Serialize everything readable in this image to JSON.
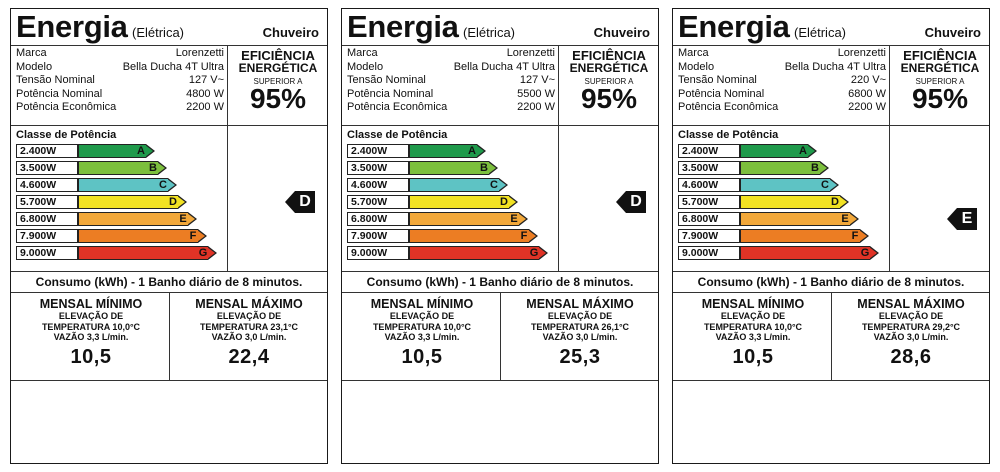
{
  "labels": [
    {
      "title": "Energia",
      "subtitle": "(Elétrica)",
      "product": "Chuveiro",
      "specs": [
        {
          "k": "Marca",
          "v": "Lorenzetti"
        },
        {
          "k": "Modelo",
          "v": "Bella Ducha 4T Ultra"
        },
        {
          "k": "Tensão Nominal",
          "v": "127 V~"
        },
        {
          "k": "Potência Nominal",
          "v": "4800 W"
        },
        {
          "k": "Potência Econômica",
          "v": "2200 W"
        }
      ],
      "efficiency": {
        "line1": "EFICIÊNCIA",
        "line2": "ENERGÉTICA",
        "line3": "SUPERIOR A",
        "value": "95%"
      },
      "class_title": "Classe de Potência",
      "classes": [
        {
          "kw": "2.400W",
          "letter": "A"
        },
        {
          "kw": "3.500W",
          "letter": "B"
        },
        {
          "kw": "4.600W",
          "letter": "C"
        },
        {
          "kw": "5.700W",
          "letter": "D"
        },
        {
          "kw": "6.800W",
          "letter": "E"
        },
        {
          "kw": "7.900W",
          "letter": "F"
        },
        {
          "kw": "9.000W",
          "letter": "G"
        }
      ],
      "rating": "D",
      "rating_index": 3,
      "consumo": "Consumo (kWh) - 1 Banho diário de 8 minutos.",
      "min": {
        "title": "MENSAL MÍNIMO",
        "l1": "ELEVAÇÃO DE",
        "l2": "TEMPERATURA 10,0°C",
        "l3": "VAZÃO 3,3 L/min.",
        "value": "10,5"
      },
      "max": {
        "title": "MENSAL MÁXIMO",
        "l1": "ELEVAÇÃO DE",
        "l2": "TEMPERATURA 23,1°C",
        "l3": "VAZÃO 3,0 L/min.",
        "value": "22,4"
      }
    },
    {
      "title": "Energia",
      "subtitle": "(Elétrica)",
      "product": "Chuveiro",
      "specs": [
        {
          "k": "Marca",
          "v": "Lorenzetti"
        },
        {
          "k": "Modelo",
          "v": "Bella Ducha 4T Ultra"
        },
        {
          "k": "Tensão Nominal",
          "v": "127 V~"
        },
        {
          "k": "Potência Nominal",
          "v": "5500 W"
        },
        {
          "k": "Potência Econômica",
          "v": "2200 W"
        }
      ],
      "efficiency": {
        "line1": "EFICIÊNCIA",
        "line2": "ENERGÉTICA",
        "line3": "SUPERIOR A",
        "value": "95%"
      },
      "class_title": "Classe de Potência",
      "classes": [
        {
          "kw": "2.400W",
          "letter": "A"
        },
        {
          "kw": "3.500W",
          "letter": "B"
        },
        {
          "kw": "4.600W",
          "letter": "C"
        },
        {
          "kw": "5.700W",
          "letter": "D"
        },
        {
          "kw": "6.800W",
          "letter": "E"
        },
        {
          "kw": "7.900W",
          "letter": "F"
        },
        {
          "kw": "9.000W",
          "letter": "G"
        }
      ],
      "rating": "D",
      "rating_index": 3,
      "consumo": "Consumo (kWh) - 1 Banho diário de 8 minutos.",
      "min": {
        "title": "MENSAL MÍNIMO",
        "l1": "ELEVAÇÃO DE",
        "l2": "TEMPERATURA 10,0°C",
        "l3": "VAZÃO 3,3 L/min.",
        "value": "10,5"
      },
      "max": {
        "title": "MENSAL MÁXIMO",
        "l1": "ELEVAÇÃO DE",
        "l2": "TEMPERATURA 26,1°C",
        "l3": "VAZÃO 3,0 L/min.",
        "value": "25,3"
      }
    },
    {
      "title": "Energia",
      "subtitle": "(Elétrica)",
      "product": "Chuveiro",
      "specs": [
        {
          "k": "Marca",
          "v": "Lorenzetti"
        },
        {
          "k": "Modelo",
          "v": "Bella Ducha 4T Ultra"
        },
        {
          "k": "Tensão Nominal",
          "v": "220 V~"
        },
        {
          "k": "Potência Nominal",
          "v": "6800 W"
        },
        {
          "k": "Potência Econômica",
          "v": "2200 W"
        }
      ],
      "efficiency": {
        "line1": "EFICIÊNCIA",
        "line2": "ENERGÉTICA",
        "line3": "SUPERIOR A",
        "value": "95%"
      },
      "class_title": "Classe de Potência",
      "classes": [
        {
          "kw": "2.400W",
          "letter": "A"
        },
        {
          "kw": "3.500W",
          "letter": "B"
        },
        {
          "kw": "4.600W",
          "letter": "C"
        },
        {
          "kw": "5.700W",
          "letter": "D"
        },
        {
          "kw": "6.800W",
          "letter": "E"
        },
        {
          "kw": "7.900W",
          "letter": "F"
        },
        {
          "kw": "9.000W",
          "letter": "G"
        }
      ],
      "rating": "E",
      "rating_index": 4,
      "consumo": "Consumo (kWh) - 1 Banho diário de 8 minutos.",
      "min": {
        "title": "MENSAL MÍNIMO",
        "l1": "ELEVAÇÃO DE",
        "l2": "TEMPERATURA 10,0°C",
        "l3": "VAZÃO 3,3 L/min.",
        "value": "10,5"
      },
      "max": {
        "title": "MENSAL MÁXIMO",
        "l1": "ELEVAÇÃO DE",
        "l2": "TEMPERATURA 29,2°C",
        "l3": "VAZÃO 3,0 L/min.",
        "value": "28,6"
      }
    }
  ],
  "class_colors": [
    "#1f9a4b",
    "#7cbf3d",
    "#5ec3c4",
    "#f2e223",
    "#f2a83a",
    "#ec7d23",
    "#e03326"
  ]
}
